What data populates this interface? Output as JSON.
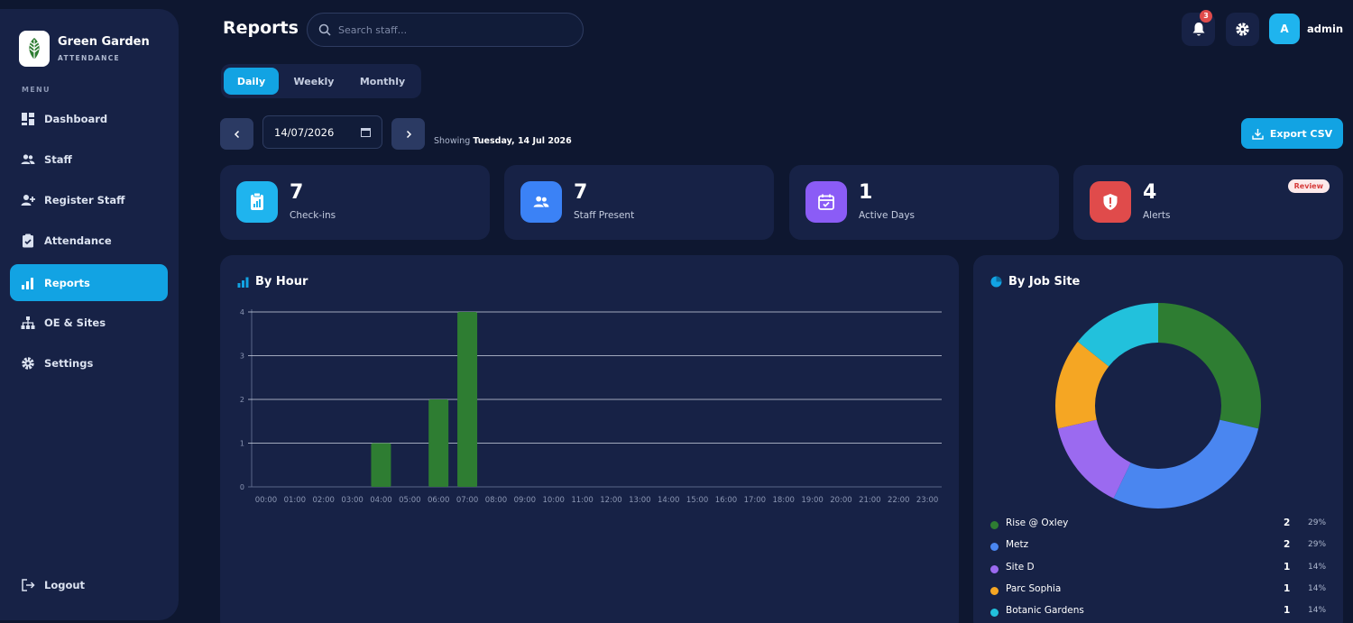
{
  "brand": {
    "name": "Green Garden",
    "subtitle": "ATTENDANCE"
  },
  "menu_label": "MENU",
  "nav": [
    {
      "label": "Dashboard",
      "icon": "dashboard-icon"
    },
    {
      "label": "Staff",
      "icon": "users-icon"
    },
    {
      "label": "Register Staff",
      "icon": "user-plus-icon"
    },
    {
      "label": "Attendance",
      "icon": "clipboard-icon"
    },
    {
      "label": "Reports",
      "icon": "bar-chart-icon",
      "active": true
    },
    {
      "label": "OE & Sites",
      "icon": "sitemap-icon"
    },
    {
      "label": "Settings",
      "icon": "gear-icon"
    }
  ],
  "logout_label": "Logout",
  "header": {
    "title": "Reports",
    "search_placeholder": "Search staff...",
    "notification_count": "3",
    "avatar_initial": "A",
    "username": "admin"
  },
  "tabs": [
    {
      "label": "Daily",
      "active": true
    },
    {
      "label": "Weekly"
    },
    {
      "label": "Monthly"
    }
  ],
  "date": {
    "value": "14/07/2026",
    "showing_prefix": "Showing",
    "showing_date": "Tuesday, 14 Jul 2026"
  },
  "export_label": "Export CSV",
  "stats": [
    {
      "value": "7",
      "label": "Check-ins",
      "icon": "clipboard-chart-icon",
      "color": "#1fb4ee"
    },
    {
      "value": "7",
      "label": "Staff Present",
      "icon": "users-icon",
      "color": "#3b82f6"
    },
    {
      "value": "1",
      "label": "Active Days",
      "icon": "calendar-check-icon",
      "color": "#8b5cf6"
    },
    {
      "value": "4",
      "label": "Alerts",
      "icon": "shield-alert-icon",
      "color": "#e04b4b",
      "badge": "Review"
    }
  ],
  "by_hour_title": "By Hour",
  "by_job_site_title": "By Job Site",
  "chart_data": [
    {
      "type": "bar",
      "title": "By Hour",
      "categories": [
        "00:00",
        "01:00",
        "02:00",
        "03:00",
        "04:00",
        "05:00",
        "06:00",
        "07:00",
        "08:00",
        "09:00",
        "10:00",
        "11:00",
        "12:00",
        "13:00",
        "14:00",
        "15:00",
        "16:00",
        "17:00",
        "18:00",
        "19:00",
        "20:00",
        "21:00",
        "22:00",
        "23:00"
      ],
      "values": [
        0,
        0,
        0,
        0,
        1,
        0,
        2,
        4,
        0,
        0,
        0,
        0,
        0,
        0,
        0,
        0,
        0,
        0,
        0,
        0,
        0,
        0,
        0,
        0
      ],
      "ylim": [
        0,
        4
      ],
      "yticks": [
        0,
        1,
        2,
        3,
        4
      ],
      "color": "#2e7d32",
      "grid": true
    },
    {
      "type": "pie",
      "title": "By Job Site",
      "donut": true,
      "labels": [
        "Rise @ Oxley",
        "Metz",
        "Site D",
        "Parc Sophia",
        "Botanic Gardens"
      ],
      "values": [
        2,
        2,
        1,
        1,
        1
      ],
      "percents": [
        "29%",
        "29%",
        "14%",
        "14%",
        "14%"
      ],
      "colors": [
        "#2e7d32",
        "#4a86f0",
        "#9b6af0",
        "#f5a623",
        "#22c1dc"
      ],
      "legend": "bottom"
    }
  ]
}
